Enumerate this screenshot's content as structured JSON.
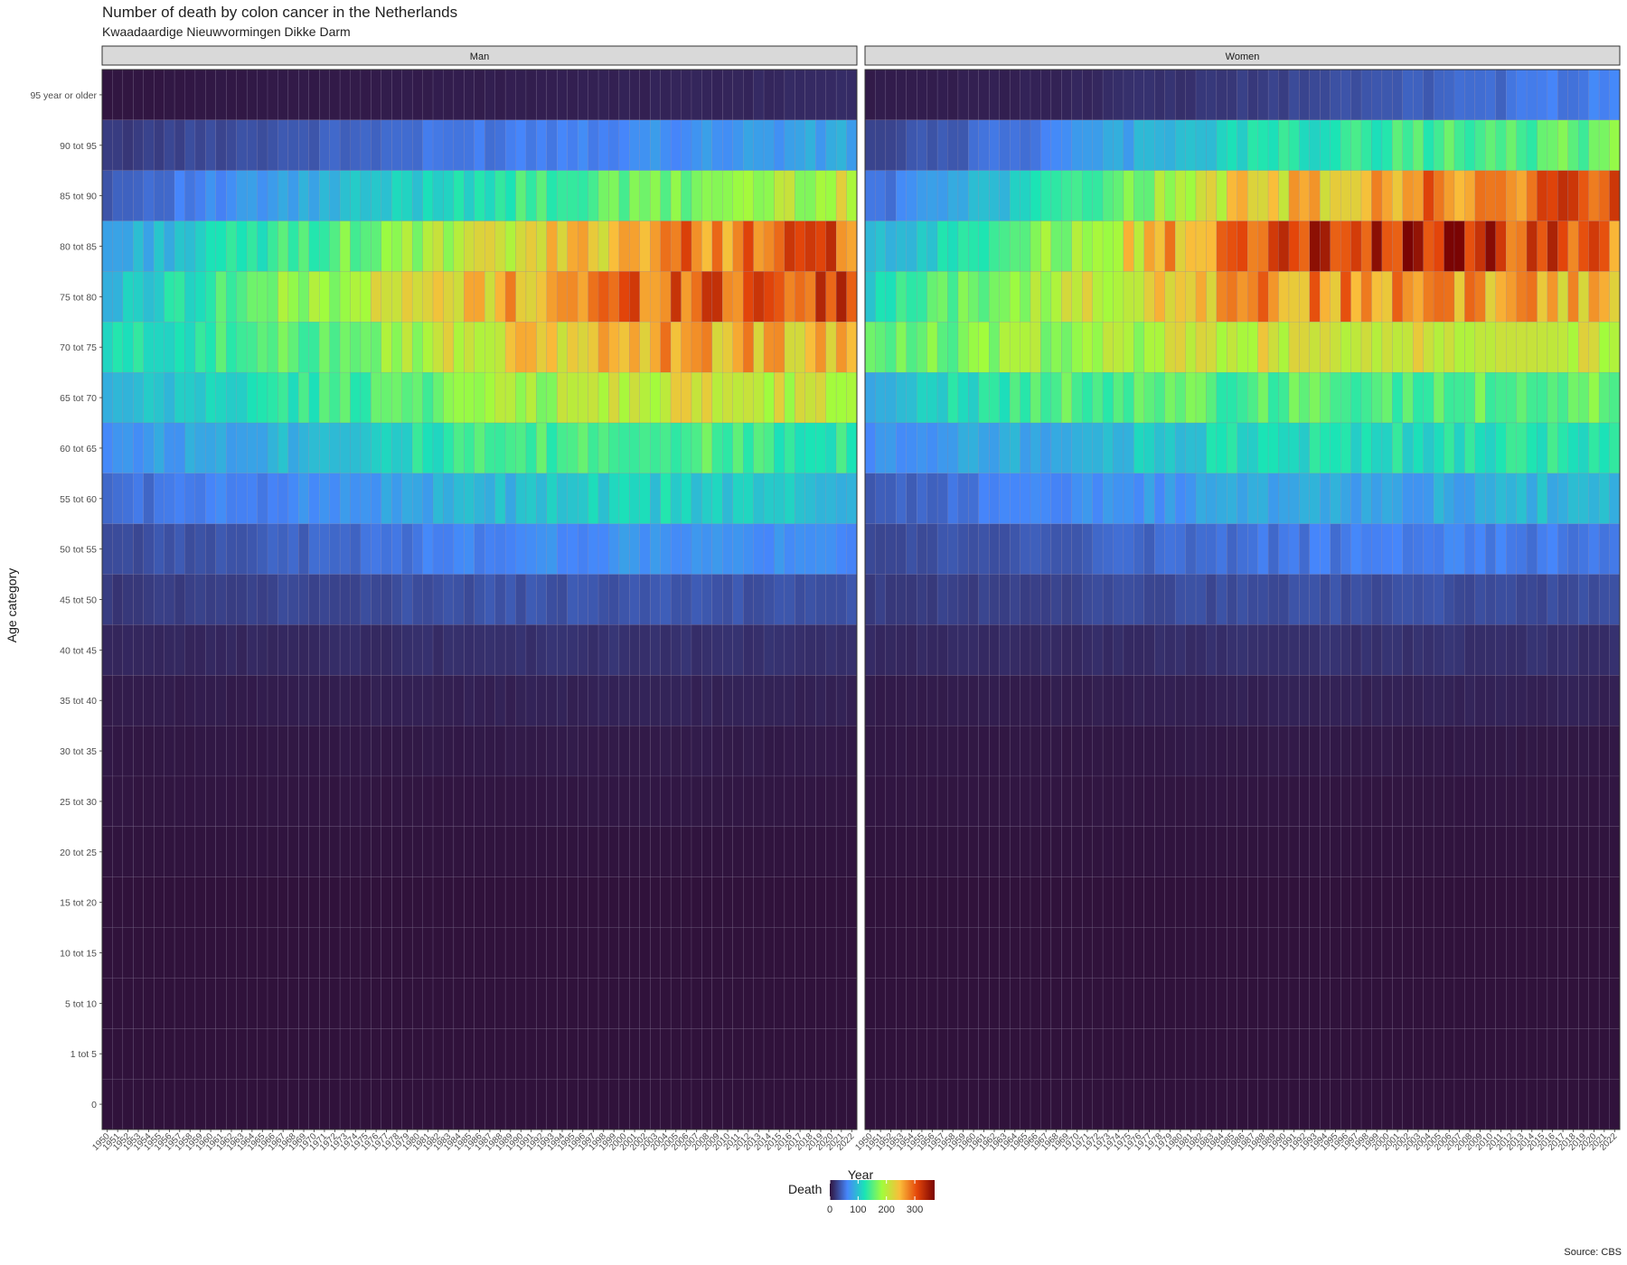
{
  "chart_data": {
    "type": "heatmap",
    "title": "Number of death by colon cancer in the Netherlands",
    "subtitle": "Kwaadaardige Nieuwvormingen Dikke Darm",
    "xlabel": "Year",
    "ylabel": "Age category",
    "caption": "Source: CBS",
    "legend": {
      "title": "Death",
      "ticks": [
        0,
        100,
        200,
        300
      ],
      "range": [
        0,
        370
      ],
      "position": "bottom"
    },
    "colors": [
      "#30123b",
      "#4686fb",
      "#1ae4b6",
      "#a2fc3c",
      "#fabd3a",
      "#e4460a",
      "#7a0403"
    ],
    "year_start": 1950,
    "year_end": 2022,
    "age_categories": [
      "95 year or older",
      "90 tot 95",
      "85 tot 90",
      "80 tot 85",
      "75 tot 80",
      "70 tot 75",
      "65 tot 70",
      "60 tot 65",
      "55 tot 60",
      "50 tot 55",
      "45 tot 50",
      "40 tot 45",
      "35 tot 40",
      "30 tot 35",
      "25 tot 30",
      "20 tot 25",
      "15 tot 20",
      "10 tot 15",
      "5 tot 10",
      "1 tot 5",
      "0"
    ],
    "panels": [
      {
        "name": "Man",
        "profiles": {
          "95 year or older": [
            2,
            4,
            6,
            9,
            14
          ],
          "90 tot 95": [
            20,
            38,
            55,
            70,
            82
          ],
          "85 tot 90": [
            40,
            80,
            128,
            160,
            205
          ],
          "80 tot 85": [
            78,
            140,
            200,
            275,
            298
          ],
          "75 tot 80": [
            92,
            175,
            240,
            300,
            310
          ],
          "70 tot 75": [
            115,
            150,
            215,
            260,
            240
          ],
          "65 tot 70": [
            85,
            130,
            175,
            215,
            195
          ],
          "60 tot 65": [
            70,
            95,
            135,
            150,
            132
          ],
          "55 tot 60": [
            48,
            65,
            92,
            112,
            95
          ],
          "50 tot 55": [
            30,
            42,
            62,
            72,
            62
          ],
          "45 tot 50": [
            20,
            28,
            34,
            36,
            33
          ],
          "40 tot 45": [
            10,
            12,
            16,
            17,
            15
          ],
          "35 tot 40": [
            5,
            6,
            8,
            9,
            8
          ],
          "30 tot 35": [
            3,
            3,
            4,
            5,
            4
          ],
          "25 tot 30": [
            2,
            2,
            2,
            3,
            2
          ],
          "20 tot 25": [
            1,
            1,
            1,
            1,
            1
          ],
          "15 tot 20": [
            0,
            0,
            0,
            0,
            0
          ],
          "10 tot 15": [
            0,
            0,
            0,
            0,
            0
          ],
          "5 tot 10": [
            0,
            0,
            0,
            0,
            0
          ],
          "1 tot 5": [
            0,
            0,
            0,
            0,
            0
          ],
          "0": [
            0,
            0,
            0,
            0,
            0
          ]
        }
      },
      {
        "name": "Women",
        "profiles": {
          "95 year or older": [
            5,
            9,
            22,
            40,
            62
          ],
          "90 tot 95": [
            25,
            60,
            120,
            142,
            158
          ],
          "85 tot 90": [
            48,
            120,
            225,
            275,
            300
          ],
          "80 tot 85": [
            85,
            175,
            300,
            340,
            290
          ],
          "75 tot 80": [
            115,
            195,
            265,
            275,
            245
          ],
          "70 tot 75": [
            145,
            185,
            210,
            212,
            205
          ],
          "65 tot 70": [
            95,
            150,
            150,
            148,
            158
          ],
          "60 tot 65": [
            70,
            90,
            118,
            120,
            130
          ],
          "55 tot 60": [
            38,
            65,
            80,
            82,
            100
          ],
          "50 tot 55": [
            30,
            40,
            52,
            58,
            55
          ],
          "45 tot 50": [
            22,
            27,
            32,
            33,
            30
          ],
          "40 tot 45": [
            12,
            13,
            16,
            17,
            15
          ],
          "35 tot 40": [
            5,
            6,
            8,
            9,
            8
          ],
          "30 tot 35": [
            3,
            3,
            4,
            4,
            3
          ],
          "25 tot 30": [
            2,
            2,
            2,
            2,
            2
          ],
          "20 tot 25": [
            1,
            1,
            1,
            1,
            1
          ],
          "15 tot 20": [
            0,
            0,
            0,
            0,
            0
          ],
          "10 tot 15": [
            0,
            0,
            0,
            0,
            0
          ],
          "5 tot 10": [
            0,
            0,
            0,
            0,
            0
          ],
          "1 tot 5": [
            0,
            0,
            0,
            0,
            0
          ],
          "0": [
            0,
            0,
            0,
            0,
            0
          ]
        }
      }
    ]
  }
}
